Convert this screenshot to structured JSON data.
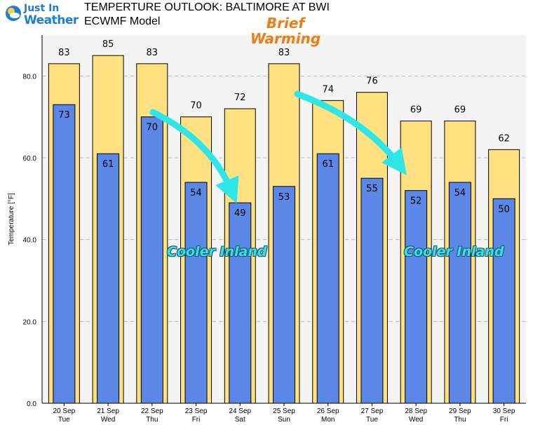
{
  "brand": {
    "line1": "Just In",
    "line2": "Weather"
  },
  "header": {
    "title": "TEMPERTURE OUTLOOK: BALTIMORE AT BWI",
    "subtitle": "ECWMF Model"
  },
  "annotations": {
    "warming_line1": "Brief",
    "warming_line2": "Warming",
    "cooler_left": "Cooler Inland",
    "cooler_right": "Cooler Inland"
  },
  "colors": {
    "high_fill": "#ffe182",
    "low_fill": "#5b87e6",
    "arrow": "#2ee6e8",
    "plot_bg": "#f4f4f4"
  },
  "chart_data": {
    "type": "bar",
    "title": "TEMPERTURE OUTLOOK: BALTIMORE AT BWI",
    "subtitle": "ECWMF Model",
    "ylabel": "Temperature [°F]",
    "ylim": [
      0,
      90
    ],
    "yticks": [
      "0.0",
      "20.0",
      "40.0",
      "60.0",
      "80.0"
    ],
    "grid": true,
    "categories": [
      "20 Sep",
      "21 Sep",
      "22 Sep",
      "23 Sep",
      "24 Sep",
      "25 Sep",
      "26 Sep",
      "27 Sep",
      "28 Sep",
      "29 Sep",
      "30 Sep"
    ],
    "days": [
      "Tue",
      "Wed",
      "Thu",
      "Fri",
      "Sat",
      "Sun",
      "Mon",
      "Tue",
      "Wed",
      "Thu",
      "Fri"
    ],
    "series": [
      {
        "values": [
          83,
          85,
          83,
          70,
          72,
          83,
          74,
          76,
          69,
          69,
          62
        ]
      },
      {
        "values": [
          73,
          61,
          70,
          54,
          49,
          53,
          61,
          55,
          52,
          54,
          50
        ]
      }
    ]
  }
}
